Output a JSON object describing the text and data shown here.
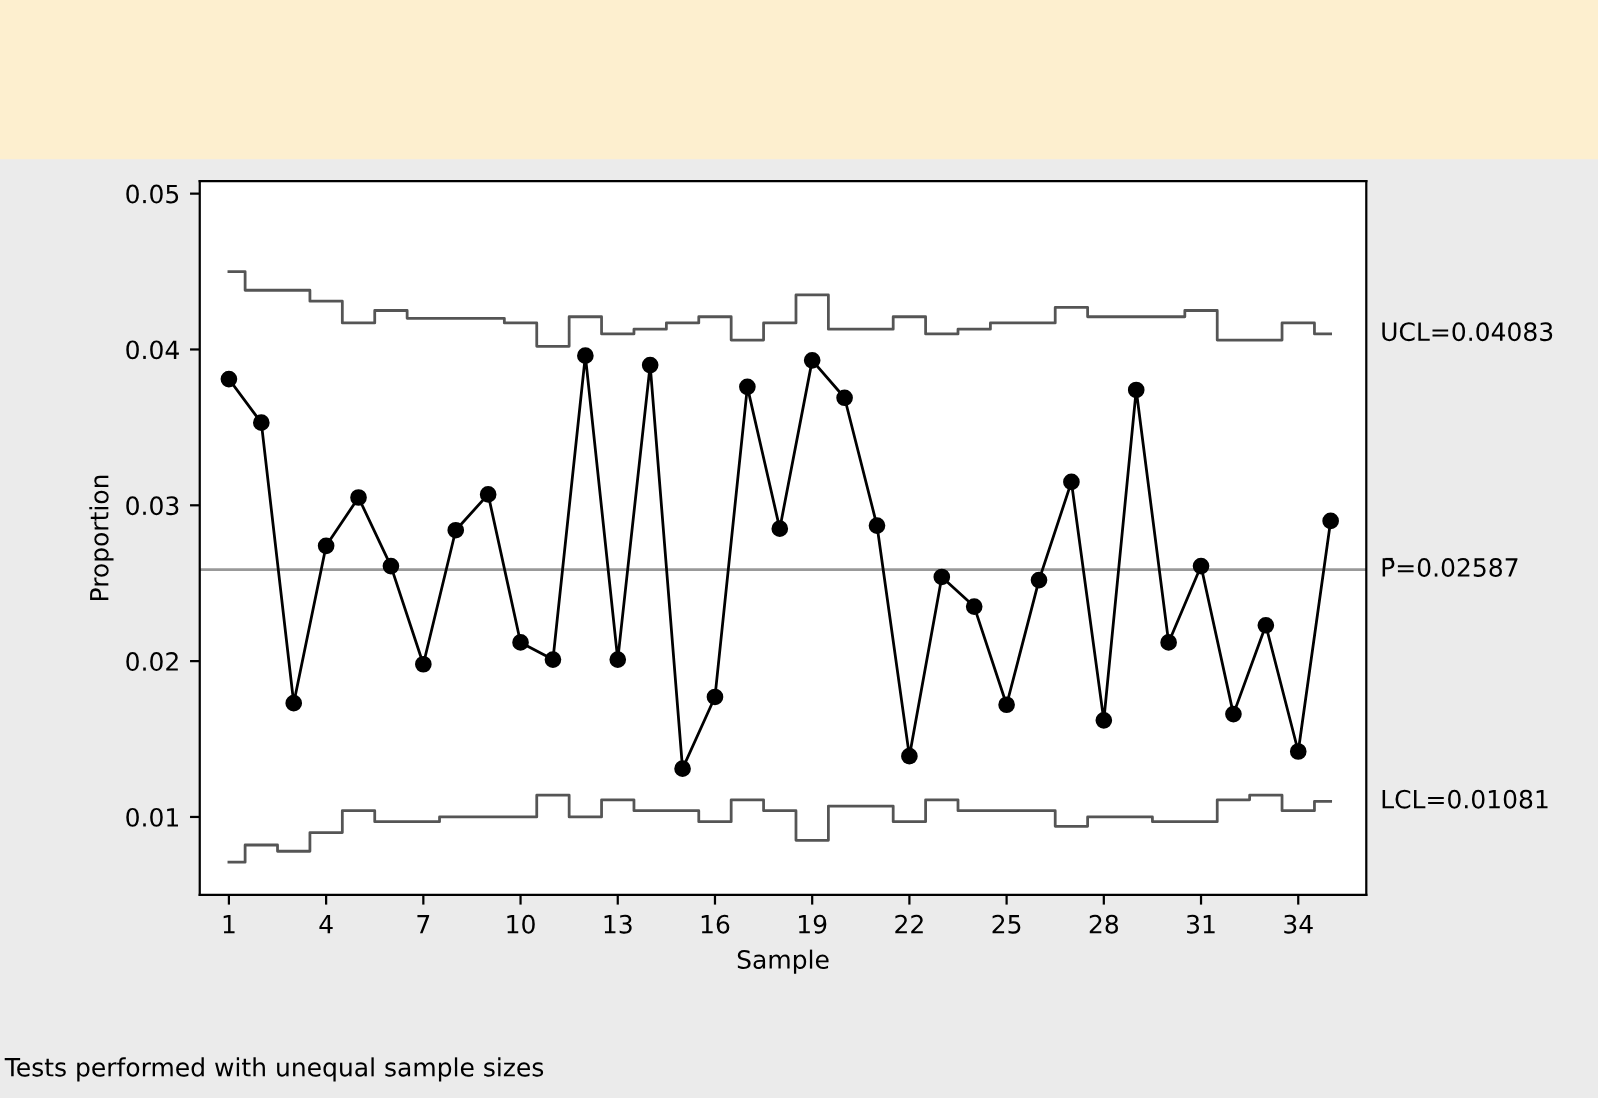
{
  "chart_data": {
    "type": "line",
    "xlabel": "Sample",
    "ylabel": "Proportion",
    "x": [
      1,
      2,
      3,
      4,
      5,
      6,
      7,
      8,
      9,
      10,
      11,
      12,
      13,
      14,
      15,
      16,
      17,
      18,
      19,
      20,
      21,
      22,
      23,
      24,
      25,
      26,
      27,
      28,
      29,
      30,
      31,
      32,
      33,
      34,
      35
    ],
    "series": [
      {
        "color": "#000000",
        "marker": "circle",
        "values": [
          0.0381,
          0.0353,
          0.0173,
          0.0274,
          0.0305,
          0.0261,
          0.0198,
          0.0284,
          0.0307,
          0.0212,
          0.0201,
          0.0396,
          0.0201,
          0.039,
          0.0131,
          0.0177,
          0.0376,
          0.0285,
          0.0393,
          0.0369,
          0.0287,
          0.0139,
          0.0254,
          0.0235,
          0.0172,
          0.0252,
          0.0315,
          0.0162,
          0.0374,
          0.0212,
          0.0261,
          0.0166,
          0.0223,
          0.0142,
          0.029
        ]
      },
      {
        "type": "step",
        "name": "UCL=0.04083",
        "color": "#555555",
        "values": [
          0.045,
          0.0438,
          0.0438,
          0.0431,
          0.0417,
          0.0425,
          0.042,
          0.042,
          0.042,
          0.0417,
          0.0402,
          0.0421,
          0.041,
          0.0413,
          0.0417,
          0.0421,
          0.0406,
          0.0417,
          0.0435,
          0.0413,
          0.0413,
          0.0421,
          0.041,
          0.0413,
          0.0417,
          0.0417,
          0.0427,
          0.0421,
          0.0421,
          0.0421,
          0.0425,
          0.0406,
          0.0406,
          0.0417,
          0.041
        ]
      },
      {
        "type": "step",
        "name": "LCL=0.01081",
        "color": "#555555",
        "values": [
          0.0071,
          0.0082,
          0.0078,
          0.009,
          0.0104,
          0.0097,
          0.0097,
          0.01,
          0.01,
          0.01,
          0.0114,
          0.01,
          0.0111,
          0.0104,
          0.0104,
          0.0097,
          0.0111,
          0.0104,
          0.0085,
          0.0107,
          0.0107,
          0.0097,
          0.0111,
          0.0104,
          0.0104,
          0.0104,
          0.0094,
          0.01,
          0.01,
          0.0097,
          0.0097,
          0.0111,
          0.0114,
          0.0104,
          0.011
        ]
      }
    ],
    "ref_lines": [
      {
        "axis": "y",
        "value": 0.02587,
        "label": "P̄=0.02587",
        "color": "#999999"
      }
    ],
    "xlim": [
      0.1,
      36.1
    ],
    "ylim": [
      0.005,
      0.0508
    ],
    "xticks": [
      1,
      4,
      7,
      10,
      13,
      16,
      19,
      22,
      25,
      28,
      31,
      34
    ],
    "yticks": [
      0.01,
      0.02,
      0.03,
      0.04,
      0.05
    ],
    "grid": false,
    "legend": false,
    "annotations": [
      "Tests performed with unequal sample sizes"
    ]
  }
}
